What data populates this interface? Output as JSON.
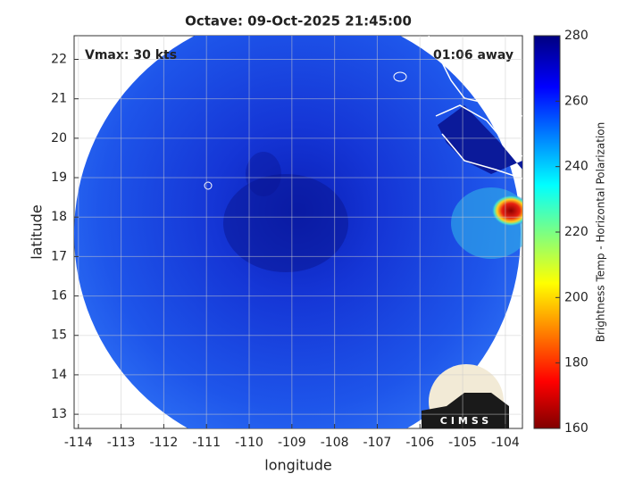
{
  "chart_data": {
    "type": "image",
    "title": "Octave: 09-Oct-2025 21:45:00",
    "xlabel": "longitude",
    "ylabel": "latitude",
    "xlim": [
      -114.1,
      -103.6
    ],
    "ylim": [
      12.64,
      22.6
    ],
    "xticks": [
      -114,
      -113,
      -112,
      -111,
      -110,
      -109,
      -108,
      -107,
      -106,
      -105,
      -104
    ],
    "yticks": [
      13,
      14,
      15,
      16,
      17,
      18,
      19,
      20,
      21,
      22
    ],
    "grid": true,
    "annotations": [
      "Vmax: 30 kts",
      "01:06 away"
    ],
    "logo": "CIMSS",
    "colorbar": {
      "label": "Brightness Temp - Horizontal Polarization",
      "lim": [
        160,
        280
      ],
      "ticks": [
        160,
        180,
        200,
        220,
        240,
        260,
        280
      ]
    }
  }
}
